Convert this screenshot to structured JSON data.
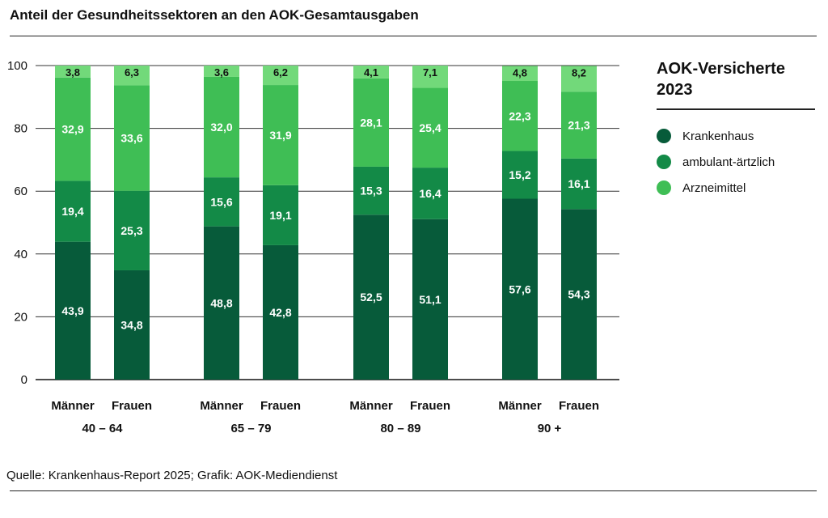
{
  "header": {
    "title": "Anteil der Gesundheitssektoren an den AOK-Gesamtausgaben"
  },
  "legend": {
    "title_line1": "AOK-Versicherte",
    "title_line2": "2023",
    "items": [
      {
        "label": "Krankenhaus",
        "color": "#075b3a"
      },
      {
        "label": "ambulant-ärtzlich",
        "color": "#138a47"
      },
      {
        "label": "Arzneimittel",
        "color": "#3fbe55"
      }
    ]
  },
  "footer": {
    "source": "Quelle: Krankenhaus-Report 2025; Grafik: AOK-Mediendienst"
  },
  "chart_data": {
    "type": "bar",
    "stacked": true,
    "ylim": [
      0,
      100
    ],
    "yticks": [
      0,
      20,
      40,
      60,
      80,
      100
    ],
    "grid": true,
    "categories": [
      "Männer",
      "Frauen",
      "Männer",
      "Frauen",
      "Männer",
      "Frauen",
      "Männer",
      "Frauen"
    ],
    "groups": [
      "40 – 64",
      "65 – 79",
      "80 – 89",
      "90 +"
    ],
    "series": [
      {
        "name": "Krankenhaus",
        "color": "#075b3a",
        "values": [
          43.9,
          34.8,
          48.8,
          42.8,
          52.5,
          51.1,
          57.6,
          54.3
        ],
        "labels": [
          "43,9",
          "34,8",
          "48,8",
          "42,8",
          "52,5",
          "51,1",
          "57,6",
          "54,3"
        ]
      },
      {
        "name": "ambulant-ärtzlich",
        "color": "#138a47",
        "values": [
          19.4,
          25.3,
          15.6,
          19.1,
          15.3,
          16.4,
          15.2,
          16.1
        ],
        "labels": [
          "19,4",
          "25,3",
          "15,6",
          "19,1",
          "15,3",
          "16,4",
          "15,2",
          "16,1"
        ]
      },
      {
        "name": "Arzneimittel",
        "color": "#3fbe55",
        "values": [
          32.9,
          33.6,
          32.0,
          31.9,
          28.1,
          25.4,
          22.3,
          21.3
        ],
        "labels": [
          "32,9",
          "33,6",
          "32,0",
          "31,9",
          "28,1",
          "25,4",
          "22,3",
          "21,3"
        ]
      },
      {
        "name": "",
        "color": "#72d97a",
        "values": [
          3.8,
          6.3,
          3.6,
          6.2,
          4.1,
          7.1,
          4.8,
          8.2
        ],
        "labels": [
          "3,8",
          "6,3",
          "3,6",
          "6,2",
          "4,1",
          "7,1",
          "4,8",
          "8,2"
        ]
      }
    ]
  }
}
